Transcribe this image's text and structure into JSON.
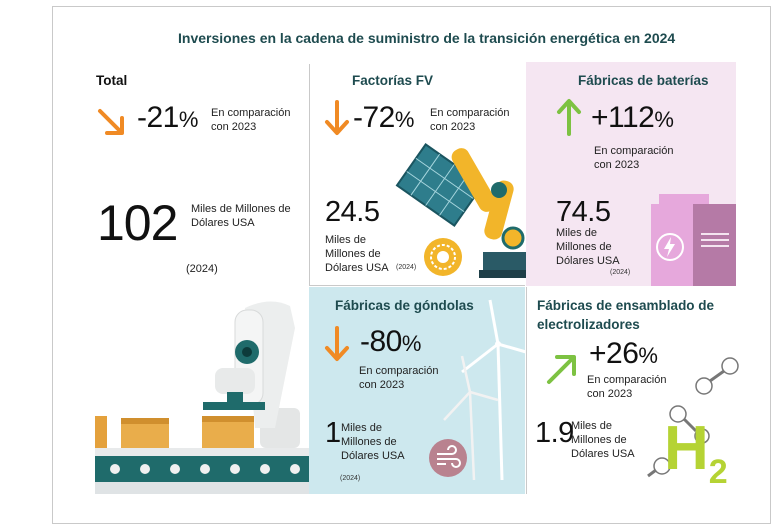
{
  "title": "Inversiones en la cadena de suministro de la transición energética en 2024",
  "total": {
    "label": "Total",
    "change": "-21",
    "pct": "%",
    "comparison": "En comparación con 2023",
    "value": "102",
    "unit": "Miles de Millones de Dólares USA",
    "year": "(2024)",
    "trend": "down"
  },
  "fv": {
    "label": "Factorías FV",
    "change": "-72",
    "pct": "%",
    "comparison": "En comparación con 2023",
    "value": "24.5",
    "unit": "Miles de Millones de Dólares USA",
    "year": "(2024)",
    "trend": "down"
  },
  "baterias": {
    "label": "Fábricas de baterías",
    "change": "+112",
    "pct": "%",
    "comparison": "En comparación con 2023",
    "value": "74.5",
    "unit": "Miles de Millones de Dólares USA",
    "year": "(2024)",
    "trend": "up"
  },
  "gondolas": {
    "label": "Fábricas de góndolas",
    "change": "-80",
    "pct": "%",
    "comparison": "En comparación con 2023",
    "value": "1",
    "unit": "Miles de Millones de Dólares USA",
    "year": "(2024)",
    "trend": "down"
  },
  "electrolizadores": {
    "label_line1": "Fábricas de ensamblado de",
    "label_line2": "electrolizadores",
    "change": "+26",
    "pct": "%",
    "comparison": "En comparación con 2023",
    "value": "1.9",
    "unit": "Miles de Millones de Dólares USA",
    "trend": "up",
    "symbol_main": "H",
    "symbol_sub": "2"
  },
  "colors": {
    "title": "#1e4b4f",
    "down_arrow": "#f08a24",
    "up_arrow": "#7dc242",
    "battery_panel": "#f5e6f2",
    "gondola_panel": "#cde8ee",
    "h2_green": "#b5d334"
  },
  "icons": [
    "down-arrow-icon",
    "up-arrow-icon",
    "solar-panel-robot-arm-icon",
    "gear-icon",
    "battery-icon",
    "lightning-icon",
    "wind-turbine-icon",
    "wind-icon",
    "molecule-icon",
    "factory-robot-conveyor-icon"
  ]
}
